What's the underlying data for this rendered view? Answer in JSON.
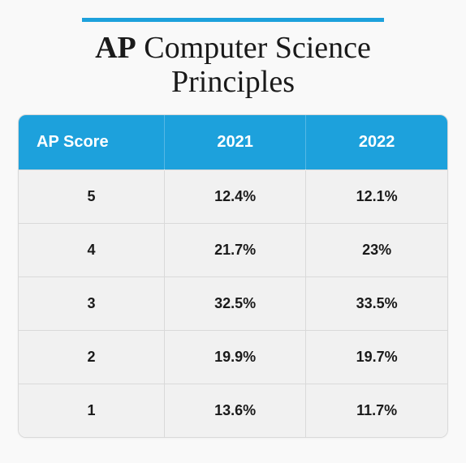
{
  "accent_color": "#1da1dc",
  "background_color": "#f9f9f9",
  "card_bg": "#ffffff",
  "row_bg": "#f1f1f1",
  "border_color": "#d9d9d9",
  "header_text_color": "#ffffff",
  "body_text_color": "#1a1a1a",
  "title_bold": "AP",
  "title_rest_line1": " Computer Science",
  "title_line2": "Principles",
  "title_fontsize": 38,
  "header_fontsize": 20,
  "cell_fontsize": 18,
  "table": {
    "type": "table",
    "columns": [
      "AP Score",
      "2021",
      "2022"
    ],
    "column_widths_pct": [
      34,
      33,
      33
    ],
    "rows": [
      [
        "5",
        "12.4%",
        "12.1%"
      ],
      [
        "4",
        "21.7%",
        "23%"
      ],
      [
        "3",
        "32.5%",
        "33.5%"
      ],
      [
        "2",
        "19.9%",
        "19.7%"
      ],
      [
        "1",
        "13.6%",
        "11.7%"
      ]
    ]
  }
}
